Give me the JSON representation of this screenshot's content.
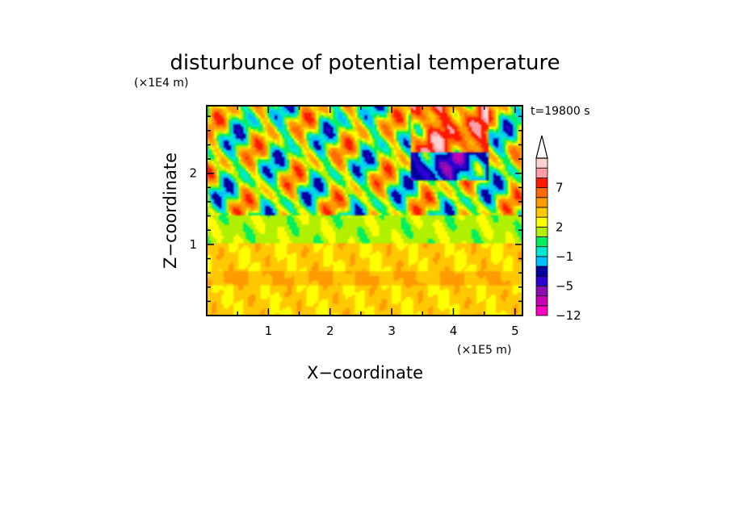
{
  "chart_data": {
    "type": "heatmap",
    "title": "disturbunce of potential temperature",
    "time_label": "t=19800 s",
    "xlabel": "X−coordinate",
    "ylabel": "Z−coordinate",
    "x_scale_label": "(×1E5 m)",
    "y_scale_label": "(×1E4 m)",
    "xlim": [
      0,
      5.12
    ],
    "ylim": [
      0,
      2.95
    ],
    "x_ticks": [
      1,
      2,
      3,
      4,
      5
    ],
    "x_tick_labels": [
      "1",
      "2",
      "3",
      "4",
      "5"
    ],
    "y_ticks": [
      1,
      2
    ],
    "y_tick_labels": [
      "1",
      "2"
    ],
    "colorbar": {
      "levels": [
        -12,
        -5,
        -1,
        2,
        7
      ],
      "level_labels": [
        "−12",
        "−5",
        "−1",
        "2",
        "7"
      ],
      "extend": "max",
      "colors": [
        "#ff00c0",
        "#c800b4",
        "#8c0cb4",
        "#2a00d4",
        "#0000a0",
        "#00bfff",
        "#00e8d0",
        "#00f060",
        "#b0f000",
        "#ffff00",
        "#ffc800",
        "#ff9a00",
        "#ff6a00",
        "#ff1a00",
        "#ffa0a8",
        "#ffd2d2"
      ]
    },
    "field_description_regions": [
      {
        "z_range": [
          0,
          1.0
        ],
        "typical_value": 1.5
      },
      {
        "z_range": [
          1.0,
          1.4
        ],
        "typical_value": 0.0
      },
      {
        "z_range": [
          1.4,
          2.95
        ],
        "typical_value": "wavy, from -5 to 7"
      }
    ],
    "grid": false
  }
}
